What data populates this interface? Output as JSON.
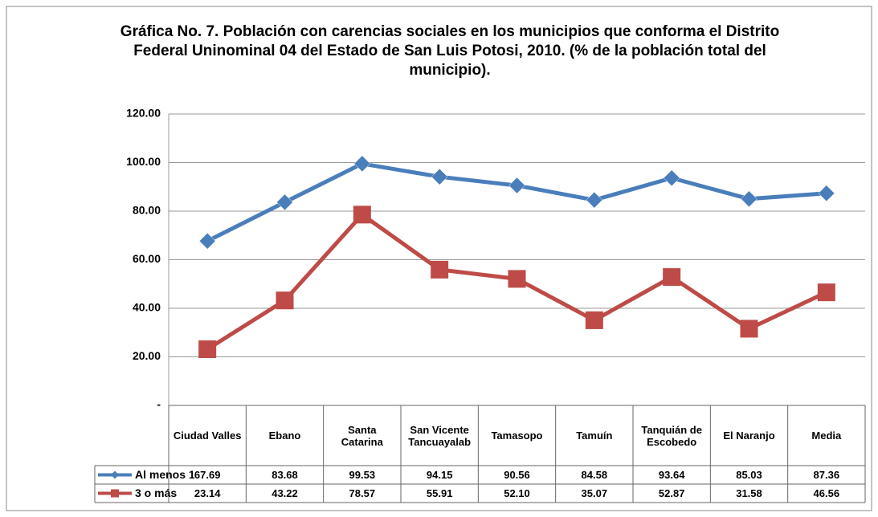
{
  "chart_data": {
    "type": "line",
    "title": "Gráfica No. 7. Población con carencias sociales en los municipios que conforma el Distrito Federal Uninominal 04 del Estado de San Luis Potosi, 2010. (% de la población total del municipio).",
    "categories": [
      "Ciudad Valles",
      "Ebano",
      "Santa Catarina",
      "San Vicente Tancuayalab",
      "Tamasopo",
      "Tamuín",
      "Tanquián de Escobedo",
      "El Naranjo",
      "Media"
    ],
    "series": [
      {
        "name": "Al menos 1",
        "color": "#4a7ebb",
        "marker": "diamond",
        "values": [
          67.69,
          83.68,
          99.53,
          94.15,
          90.56,
          84.58,
          93.64,
          85.03,
          87.36
        ],
        "value_labels": [
          "67.69",
          "83.68",
          "99.53",
          "94.15",
          "90.56",
          "84.58",
          "93.64",
          "85.03",
          "87.36"
        ]
      },
      {
        "name": "3 o más",
        "color": "#be4b48",
        "marker": "square",
        "values": [
          23.14,
          43.22,
          78.57,
          55.91,
          52.1,
          35.07,
          52.87,
          31.58,
          46.56
        ],
        "value_labels": [
          "23.14",
          "43.22",
          "78.57",
          "55.91",
          "52.10",
          "35.07",
          "52.87",
          "31.58",
          "46.56"
        ]
      }
    ],
    "ylim": [
      0,
      120
    ],
    "yticks": [
      {
        "value": 0,
        "label": "-"
      },
      {
        "value": 20,
        "label": "20.00"
      },
      {
        "value": 40,
        "label": "40.00"
      },
      {
        "value": 60,
        "label": "60.00"
      },
      {
        "value": 80,
        "label": "80.00"
      },
      {
        "value": 100,
        "label": "100.00"
      },
      {
        "value": 120,
        "label": "120.00"
      }
    ],
    "grid": true
  }
}
